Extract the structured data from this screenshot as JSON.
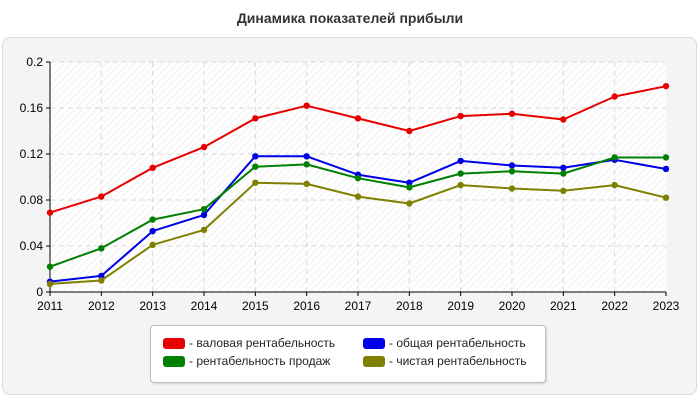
{
  "chart_data": {
    "type": "line",
    "title": "Динамика показателей прибыли",
    "xlabel": "",
    "ylabel": "",
    "x": [
      "2011",
      "2012",
      "2013",
      "2014",
      "2015",
      "2016",
      "2017",
      "2018",
      "2019",
      "2020",
      "2021",
      "2022",
      "2023"
    ],
    "ylim": [
      0,
      0.2
    ],
    "yticks": [
      "0",
      "0.04",
      "0.08",
      "0.12",
      "0.16",
      "0.2"
    ],
    "grid": true,
    "legend_position": "bottom",
    "series": [
      {
        "name": "- валовая рентабельность",
        "color": "#e80000",
        "values": [
          0.069,
          0.083,
          0.108,
          0.126,
          0.151,
          0.162,
          0.151,
          0.14,
          0.153,
          0.155,
          0.15,
          0.17,
          0.179
        ]
      },
      {
        "name": "- общая рентабельность",
        "color": "#0000e6",
        "values": [
          0.009,
          0.014,
          0.053,
          0.067,
          0.118,
          0.118,
          0.102,
          0.095,
          0.114,
          0.11,
          0.108,
          0.115,
          0.107
        ]
      },
      {
        "name": "- рентабельность продаж",
        "color": "#008000",
        "values": [
          0.022,
          0.038,
          0.063,
          0.072,
          0.109,
          0.111,
          0.099,
          0.091,
          0.103,
          0.105,
          0.103,
          0.117,
          0.117
        ]
      },
      {
        "name": "- чистая рентабельность",
        "color": "#808000",
        "values": [
          0.007,
          0.01,
          0.041,
          0.054,
          0.095,
          0.094,
          0.083,
          0.077,
          0.093,
          0.09,
          0.088,
          0.093,
          0.082
        ]
      }
    ]
  }
}
